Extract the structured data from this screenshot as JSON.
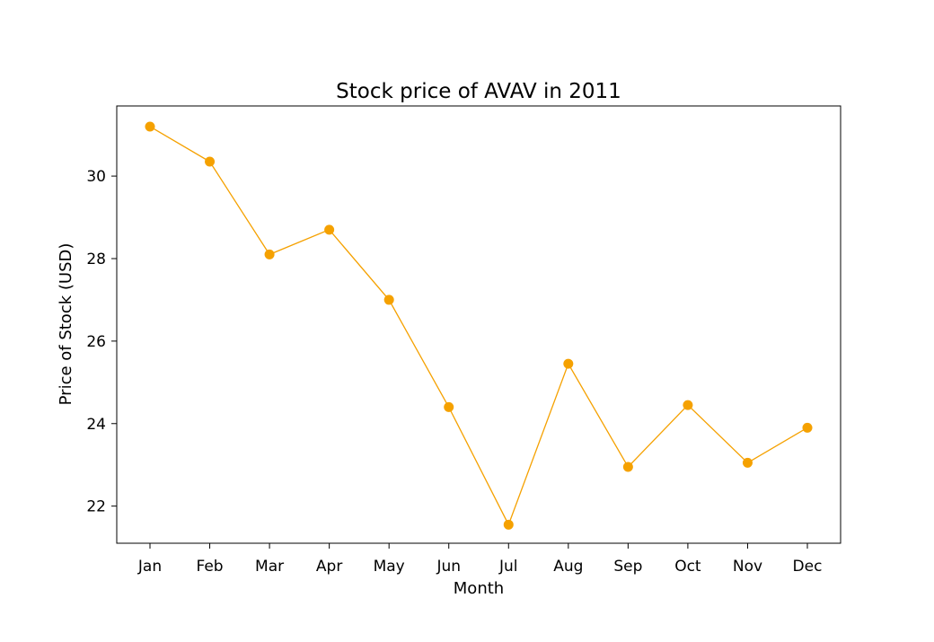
{
  "chart_data": {
    "type": "line",
    "title": "Stock price of AVAV in 2011",
    "xlabel": "Month",
    "ylabel": "Price of Stock (USD)",
    "categories": [
      "Jan",
      "Feb",
      "Mar",
      "Apr",
      "May",
      "Jun",
      "Jul",
      "Aug",
      "Sep",
      "Oct",
      "Nov",
      "Dec"
    ],
    "series": [
      {
        "values": [
          31.2,
          30.35,
          28.1,
          28.7,
          27.0,
          24.4,
          21.55,
          25.45,
          22.95,
          24.45,
          23.05,
          23.9
        ],
        "color": "#f5a100",
        "marker": "circle"
      }
    ],
    "ylim": [
      21.1,
      31.7
    ],
    "yticks": [
      22,
      24,
      26,
      28,
      30
    ],
    "grid": false,
    "legend": "none"
  }
}
